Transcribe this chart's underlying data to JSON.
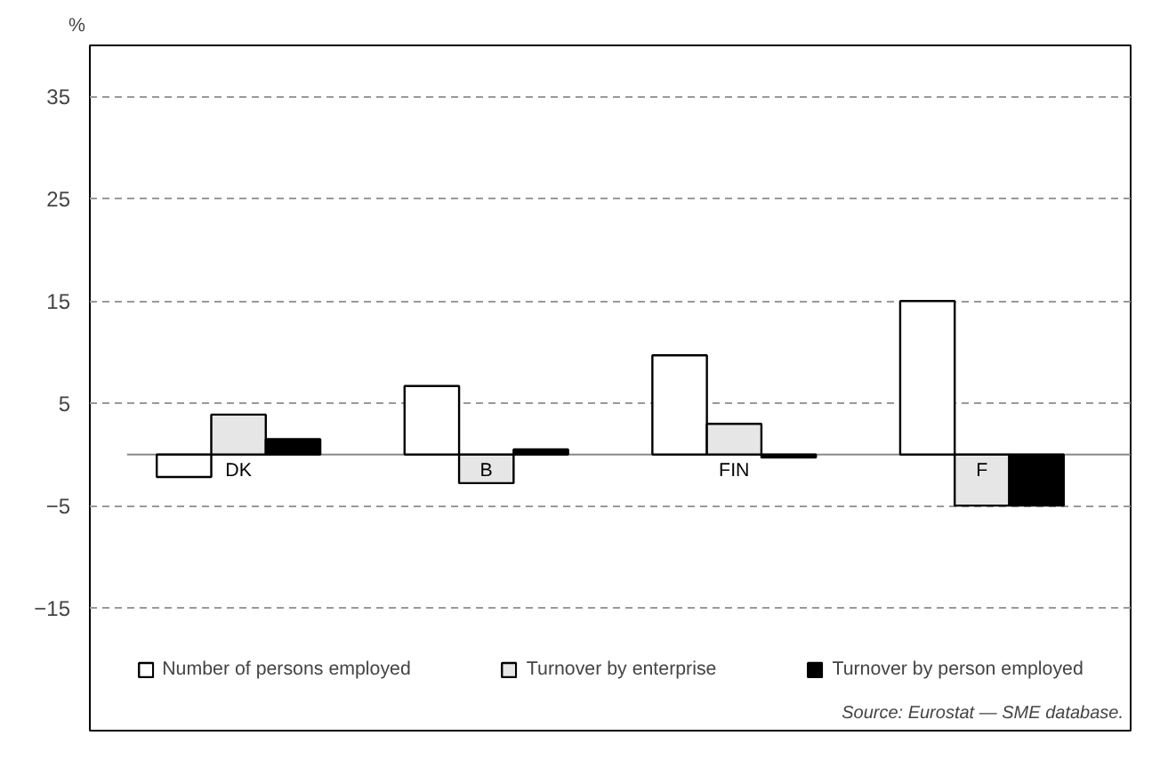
{
  "chart_data": {
    "type": "bar",
    "ylabel": "%",
    "categories": [
      "DK",
      "B",
      "FIN",
      "F"
    ],
    "series": [
      {
        "name": "Number of persons employed",
        "color": "#ffffff",
        "values": [
          -2.2,
          6.7,
          9.7,
          15
        ]
      },
      {
        "name": "Turnover by enterprise",
        "color": "#e6e6e6",
        "values": [
          3.9,
          -2.8,
          3.0,
          -5
        ]
      },
      {
        "name": "Turnover by person employed",
        "color": "#000000",
        "values": [
          1.5,
          0.5,
          -0.3,
          -5
        ]
      }
    ],
    "ylim": [
      -27,
      40
    ],
    "yticks": [
      -15,
      -5,
      5,
      15,
      25,
      35
    ],
    "grid": "y",
    "legend": "bottom",
    "annotations": [
      "Source: Eurostat — SME database."
    ]
  }
}
